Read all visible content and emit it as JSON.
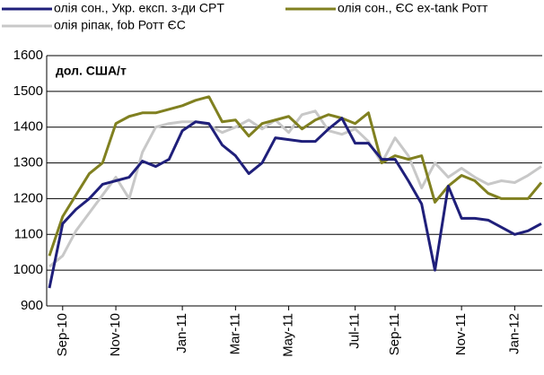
{
  "chart_data": {
    "type": "line",
    "y_label": "дол. США/т",
    "categories": [
      null,
      "Sep-10",
      null,
      null,
      null,
      "Nov-10",
      null,
      null,
      null,
      null,
      "Jan-11",
      null,
      null,
      null,
      "Mar-11",
      null,
      null,
      null,
      "May-11",
      null,
      null,
      null,
      null,
      "Jul-11",
      null,
      null,
      "Sep-11",
      null,
      null,
      null,
      null,
      "Nov-11",
      null,
      null,
      null,
      "Jan-12",
      null,
      null
    ],
    "series": [
      {
        "name": "олія сон., Укр. експ. з-ди CPT",
        "color": "#1f1f7a",
        "values": [
          950,
          1130,
          1170,
          1200,
          1240,
          1250,
          1260,
          1305,
          1290,
          1310,
          1390,
          1415,
          1410,
          1350,
          1320,
          1270,
          1300,
          1370,
          1365,
          1360,
          1360,
          1395,
          1425,
          1355,
          1355,
          1310,
          1310,
          1250,
          1185,
          1000,
          1235,
          1145,
          1145,
          1140,
          1120,
          1100,
          1110,
          1130
        ]
      },
      {
        "name": "олія сон., ЄС ex-tank Ротт",
        "color": "#808020",
        "values": [
          1040,
          1150,
          1210,
          1270,
          1300,
          1410,
          1430,
          1440,
          1440,
          1450,
          1460,
          1475,
          1485,
          1415,
          1420,
          1375,
          1410,
          1420,
          1430,
          1395,
          1420,
          1435,
          1425,
          1410,
          1440,
          1300,
          1320,
          1310,
          1320,
          1190,
          1235,
          1265,
          1250,
          1215,
          1200,
          1200,
          1200,
          1245
        ]
      },
      {
        "name": "олія ріпак, fob Ротт ЄС",
        "color": "#c8c8c8",
        "values": [
          1010,
          1040,
          1110,
          1160,
          1210,
          1260,
          1200,
          1330,
          1400,
          1410,
          1415,
          1415,
          1405,
          1385,
          1400,
          1420,
          1395,
          1420,
          1385,
          1435,
          1445,
          1390,
          1380,
          1395,
          1360,
          1300,
          1370,
          1320,
          1230,
          1300,
          1260,
          1285,
          1260,
          1240,
          1250,
          1245,
          1265,
          1290
        ]
      }
    ],
    "ylim": [
      900,
      1600
    ],
    "yticks": [
      900,
      1000,
      1100,
      1200,
      1300,
      1400,
      1500,
      1600
    ],
    "grid": true
  }
}
